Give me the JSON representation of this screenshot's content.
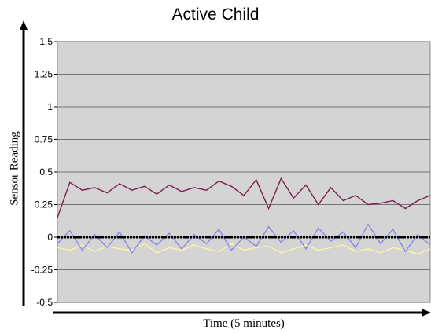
{
  "chart_data": {
    "type": "line",
    "title": "Active Child",
    "xlabel": "Time (5 minutes)",
    "ylabel": "Sensor Reading",
    "ylim": [
      -0.5,
      1.5
    ],
    "yticks": [
      "1.5",
      "1.25",
      "1",
      "0.75",
      "0.5",
      "0.25",
      "0",
      "-0.25",
      "-0.5"
    ],
    "ytick_values": [
      1.5,
      1.25,
      1,
      0.75,
      0.5,
      0.25,
      0,
      -0.25,
      -0.5
    ],
    "x_range": [
      0,
      300
    ],
    "grid": true,
    "plot_background": "#d4d4d4",
    "series": [
      {
        "color": "#7b1f4e",
        "x": [
          0,
          10,
          20,
          30,
          40,
          50,
          60,
          70,
          80,
          90,
          100,
          110,
          120,
          130,
          140,
          150,
          160,
          170,
          180,
          190,
          200,
          210,
          220,
          230,
          240,
          250,
          260,
          270,
          280,
          290,
          300
        ],
        "values": [
          0.15,
          0.42,
          0.36,
          0.38,
          0.34,
          0.41,
          0.36,
          0.39,
          0.33,
          0.4,
          0.35,
          0.38,
          0.36,
          0.43,
          0.39,
          0.32,
          0.44,
          0.22,
          0.45,
          0.3,
          0.4,
          0.25,
          0.38,
          0.28,
          0.32,
          0.25,
          0.26,
          0.28,
          0.22,
          0.28,
          0.32
        ]
      },
      {
        "color": "#fbf5a8",
        "x": [
          0,
          10,
          20,
          30,
          40,
          50,
          60,
          70,
          80,
          90,
          100,
          110,
          120,
          130,
          140,
          150,
          160,
          170,
          180,
          190,
          200,
          210,
          220,
          230,
          240,
          250,
          260,
          270,
          280,
          290,
          300
        ],
        "values": [
          -0.08,
          -0.1,
          -0.06,
          -0.11,
          -0.07,
          -0.09,
          -0.1,
          -0.05,
          -0.12,
          -0.08,
          -0.1,
          -0.06,
          -0.09,
          -0.11,
          -0.05,
          -0.1,
          -0.08,
          -0.07,
          -0.12,
          -0.09,
          -0.06,
          -0.1,
          -0.08,
          -0.06,
          -0.11,
          -0.09,
          -0.12,
          -0.08,
          -0.1,
          -0.13,
          -0.09
        ]
      },
      {
        "color": "#8888e8",
        "x": [
          0,
          10,
          20,
          30,
          40,
          50,
          60,
          70,
          80,
          90,
          100,
          110,
          120,
          130,
          140,
          150,
          160,
          170,
          180,
          190,
          200,
          210,
          220,
          230,
          240,
          250,
          260,
          270,
          280,
          290,
          300
        ],
        "values": [
          -0.05,
          0.05,
          -0.1,
          0.02,
          -0.08,
          0.04,
          -0.12,
          0.01,
          -0.06,
          0.03,
          -0.09,
          0.02,
          -0.05,
          0.06,
          -0.1,
          0.0,
          -0.07,
          0.08,
          -0.04,
          0.05,
          -0.09,
          0.07,
          -0.03,
          0.04,
          -0.08,
          0.1,
          -0.05,
          0.06,
          -0.11,
          0.02,
          -0.06
        ]
      },
      {
        "color": "#000000",
        "x": [
          0,
          300
        ],
        "values": [
          0,
          0
        ]
      }
    ],
    "annotations": [
      "arrow on y-axis",
      "arrow on x-axis"
    ]
  }
}
